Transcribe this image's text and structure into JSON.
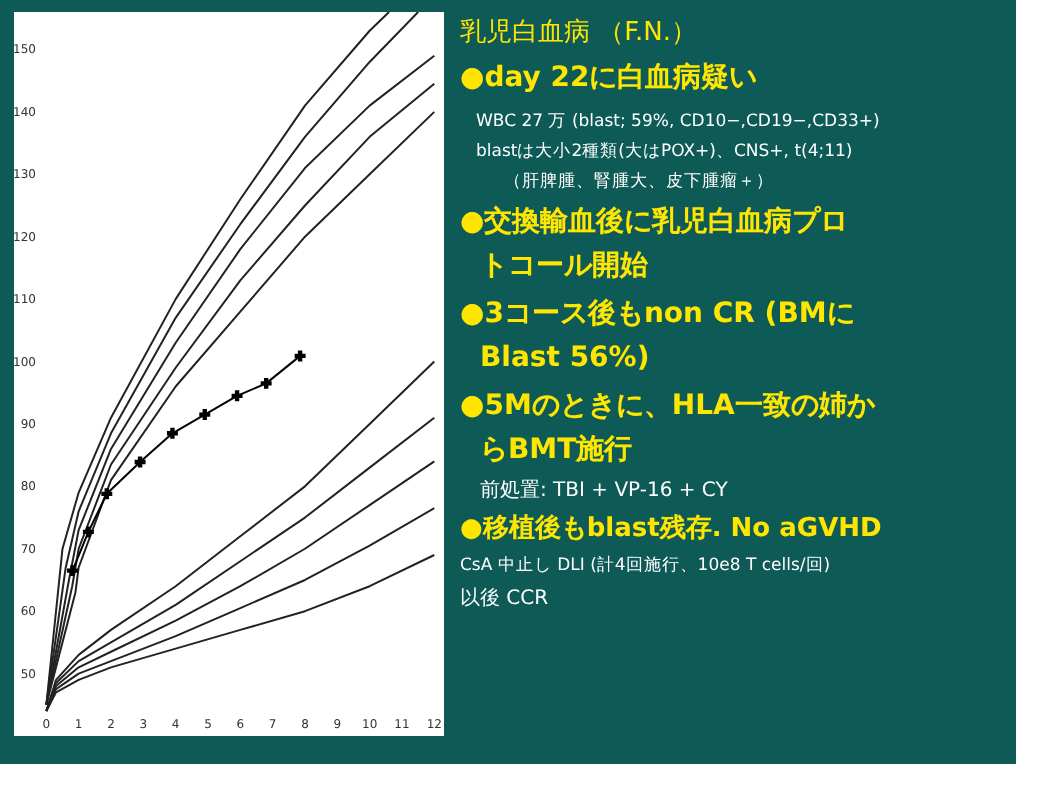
{
  "chart_data": [
    {
      "type": "line",
      "xlim": [
        -1,
        12.3
      ],
      "ylim": [
        40,
        156
      ],
      "xticks": [
        0,
        1,
        2,
        3,
        4,
        5,
        6,
        7,
        8,
        9,
        10,
        11,
        12
      ],
      "yticks": [
        50,
        60,
        70,
        80,
        90,
        100,
        110,
        120,
        130,
        140,
        150
      ],
      "grid": false,
      "series": [
        {
          "color": "#222222",
          "marker": "none",
          "x": [
            0,
            0.5,
            1,
            2,
            4,
            6,
            8,
            10,
            10.6
          ],
          "values": [
            45,
            70,
            79,
            91,
            110,
            126,
            141,
            153,
            156
          ]
        },
        {
          "color": "#222222",
          "marker": "none",
          "x": [
            0,
            0.6,
            1,
            2,
            4,
            6,
            8,
            10,
            11.5
          ],
          "values": [
            45,
            67,
            76,
            88.5,
            107,
            122,
            136,
            148,
            156
          ]
        },
        {
          "color": "#222222",
          "marker": "none",
          "x": [
            0,
            0.7,
            1,
            2,
            4,
            6,
            8,
            10,
            12
          ],
          "values": [
            45,
            65,
            73,
            86,
            103,
            118,
            131,
            141,
            149
          ]
        },
        {
          "color": "#222222",
          "marker": "none",
          "x": [
            0,
            0.8,
            1,
            2,
            4,
            6,
            8,
            10,
            12
          ],
          "values": [
            45,
            64,
            70,
            83.5,
            99,
            113,
            125,
            136,
            144.5
          ]
        },
        {
          "color": "#222222",
          "marker": "none",
          "x": [
            0,
            0.9,
            1,
            2,
            4,
            6,
            8,
            10,
            12
          ],
          "values": [
            45,
            63,
            67,
            81,
            96,
            108,
            120,
            130,
            140
          ]
        },
        {
          "color": "#222222",
          "marker": "none",
          "x": [
            0,
            0.3,
            1,
            2,
            4,
            6,
            8,
            10,
            12
          ],
          "values": [
            44,
            49,
            53,
            57,
            64,
            72,
            80,
            90,
            100
          ]
        },
        {
          "color": "#222222",
          "marker": "none",
          "x": [
            0,
            0.3,
            1,
            2,
            4,
            6,
            8,
            10,
            12
          ],
          "values": [
            44,
            48.5,
            52,
            55,
            61,
            68,
            75,
            83,
            91
          ]
        },
        {
          "color": "#222222",
          "marker": "none",
          "x": [
            0,
            0.3,
            1,
            2,
            4,
            6,
            8,
            10,
            12
          ],
          "values": [
            44,
            48,
            51,
            53.5,
            58.5,
            64,
            70,
            77,
            84
          ]
        },
        {
          "color": "#222222",
          "marker": "none",
          "x": [
            0,
            0.3,
            1,
            2,
            4,
            6,
            8,
            10,
            12
          ],
          "values": [
            44,
            47.5,
            50,
            52,
            56,
            60.5,
            65,
            70.5,
            76.5
          ]
        },
        {
          "color": "#222222",
          "marker": "none",
          "x": [
            0,
            0.3,
            1,
            2,
            4,
            6,
            8,
            10,
            12
          ],
          "values": [
            44,
            47,
            49,
            51,
            54,
            57,
            60,
            64,
            69
          ]
        },
        {
          "color": "#000000",
          "marker": "cross",
          "x": [
            0.81,
            1.3,
            1.87,
            2.9,
            3.9,
            4.9,
            5.9,
            6.8,
            7.85
          ],
          "values": [
            66.5,
            72.7,
            78.8,
            83.9,
            88.5,
            91.5,
            94.5,
            96.5,
            100.9
          ]
        }
      ]
    },
    {
      "type": "other",
      "title": "乳児白血病 （F.N.）",
      "annotations": [
        "●day 22に白血病疑い",
        "WBC 27 万 (blast; 59%, CD10−,CD19−,CD33+)",
        "blastは大小2種類(大はPOX+)、CNS+,  t(4;11)",
        "（肝脾腫、腎腫大、皮下腫瘤＋）",
        "●交換輸血後に乳児白血病プロ",
        "トコール開始",
        "●3コース後もnon CR (BMに",
        "Blast 56%)",
        "●5Mのときに、HLA一致の姉か",
        "らBMT施行",
        "前処置: TBI + VP-16 + CY",
        "●移植後もblast残存. No aGVHD",
        "CsA 中止し DLI (計4回施行、10e8 T cells/回)",
        "以後  CCR"
      ]
    }
  ]
}
